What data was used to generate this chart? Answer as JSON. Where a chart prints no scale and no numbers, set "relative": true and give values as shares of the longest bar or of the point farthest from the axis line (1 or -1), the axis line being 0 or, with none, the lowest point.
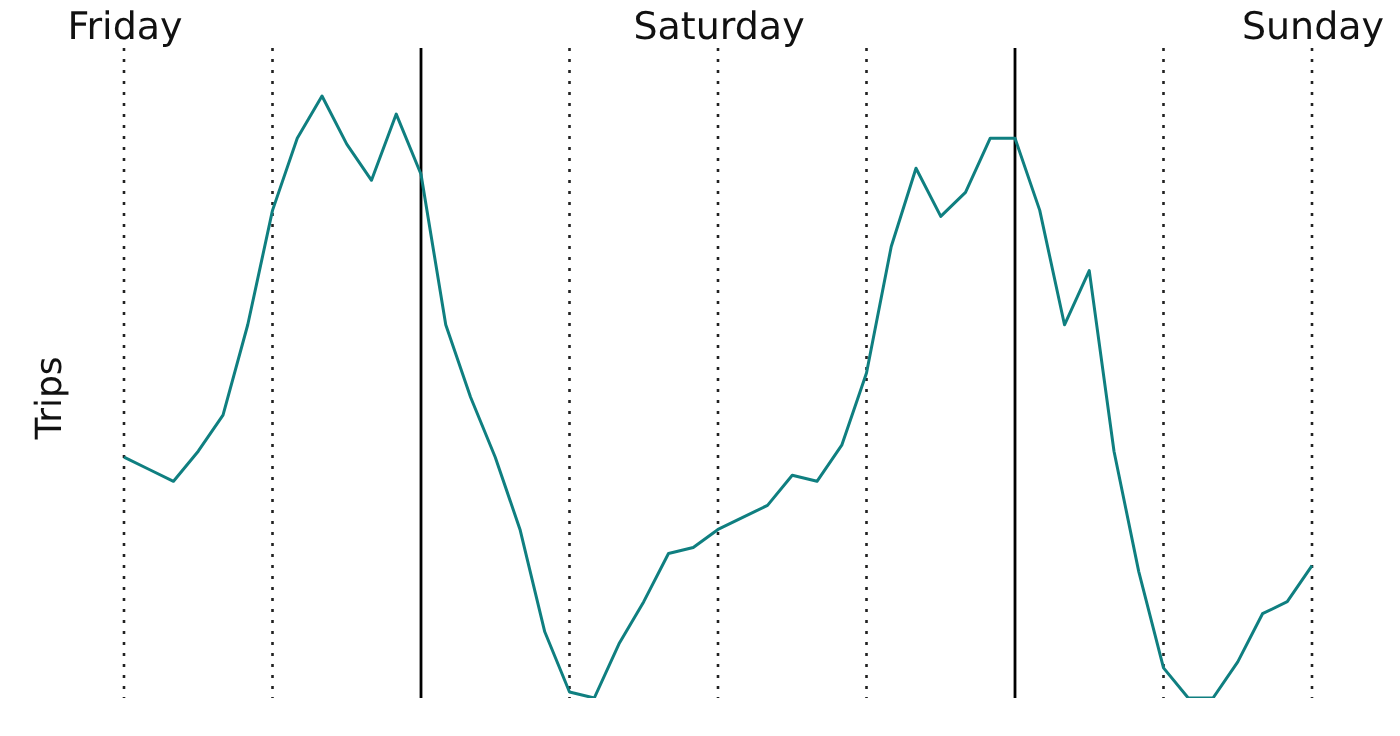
{
  "chart_data": {
    "type": "line",
    "ylabel": "Trips",
    "relative": true,
    "tick_labels": "x",
    "marker": "none",
    "line_style": "solid",
    "categories": [
      "Friday",
      null,
      null,
      null,
      null,
      null,
      null,
      null,
      null,
      null,
      null,
      null,
      null,
      null,
      null,
      null,
      null,
      null,
      null,
      null,
      null,
      null,
      null,
      null,
      "Saturday",
      null,
      null,
      null,
      null,
      null,
      null,
      null,
      null,
      null,
      null,
      null,
      null,
      null,
      null,
      null,
      null,
      null,
      null,
      null,
      null,
      null,
      null,
      null,
      "Sunday"
    ],
    "grid": "x",
    "series": [
      {
        "color": "#0f7f80",
        "values": [
          0.4,
          0.38,
          0.36,
          0.41,
          0.47,
          0.62,
          0.81,
          0.93,
          1,
          0.92,
          0.86,
          0.97,
          0.87,
          0.62,
          0.5,
          0.4,
          0.28,
          0.11,
          0.01,
          0,
          0.09,
          0.16,
          0.24,
          0.25,
          0.28,
          0.3,
          0.32,
          0.37,
          0.36,
          0.42,
          0.54,
          0.75,
          0.88,
          0.8,
          0.84,
          0.93,
          0.93,
          0.81,
          0.62,
          0.71,
          0.41,
          0.21,
          0.05,
          0,
          0,
          0.06,
          0.14,
          0.16,
          0.22
        ]
      }
    ]
  }
}
